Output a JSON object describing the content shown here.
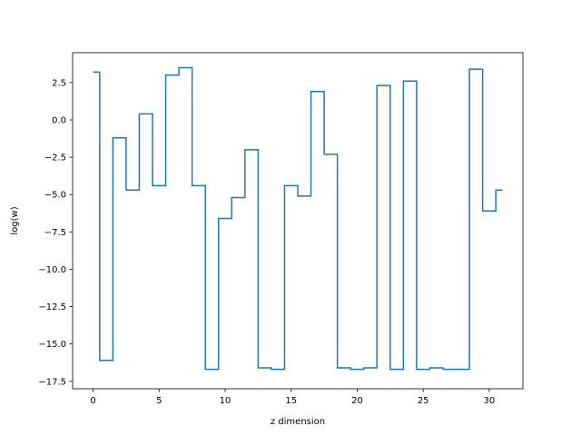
{
  "chart_data": {
    "type": "line",
    "drawstyle": "steps-mid",
    "title": "",
    "xlabel": "z dimension",
    "ylabel": "log(w)",
    "xlim": [
      -1.55,
      32.55
    ],
    "ylim": [
      -18.0,
      4.5
    ],
    "xticks": [
      0,
      5,
      10,
      15,
      20,
      25,
      30
    ],
    "xtick_labels": [
      "0",
      "5",
      "10",
      "15",
      "20",
      "25",
      "30"
    ],
    "yticks": [
      2.5,
      0.0,
      -2.5,
      -5.0,
      -7.5,
      -10.0,
      -12.5,
      -15.0,
      -17.5
    ],
    "ytick_labels": [
      "2.5",
      "0.0",
      "−2.5",
      "−5.0",
      "−7.5",
      "−10.0",
      "−12.5",
      "−15.0",
      "−17.5"
    ],
    "grid": false,
    "legend": "none",
    "series": [
      {
        "color": "#1f77b4",
        "x": [
          0,
          1,
          2,
          3,
          4,
          5,
          6,
          7,
          8,
          9,
          10,
          11,
          12,
          13,
          14,
          15,
          16,
          17,
          18,
          19,
          20,
          21,
          22,
          23,
          24,
          25,
          26,
          27,
          28,
          29,
          30,
          31
        ],
        "values": [
          3.2,
          -16.1,
          -1.2,
          -4.7,
          0.4,
          -4.4,
          3.0,
          3.5,
          -4.4,
          -16.7,
          -6.6,
          -5.2,
          -2.0,
          -16.6,
          -16.7,
          -4.4,
          -5.1,
          1.9,
          -2.3,
          -16.6,
          -16.7,
          -16.6,
          2.3,
          -16.7,
          2.6,
          -16.7,
          -16.6,
          -16.7,
          -16.7,
          3.4,
          -6.1,
          -4.7
        ]
      }
    ]
  }
}
